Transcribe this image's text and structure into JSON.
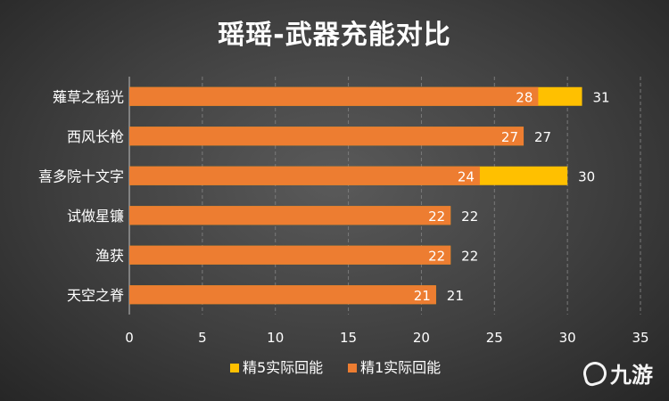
{
  "chart_data": {
    "type": "bar",
    "orientation": "horizontal",
    "title": "瑶瑶-武器充能对比",
    "categories": [
      "薙草之稻光",
      "西风长枪",
      "喜多院十文字",
      "试做星镰",
      "渔获",
      "天空之脊"
    ],
    "series": [
      {
        "name": "精1实际回能",
        "color": "#ed7d31",
        "values": [
          28,
          27,
          24,
          22,
          22,
          21
        ]
      },
      {
        "name": "精5实际回能",
        "color": "#ffc000",
        "values": [
          31,
          27,
          30,
          22,
          22,
          21
        ]
      }
    ],
    "xlim": [
      0,
      35
    ],
    "xticks": [
      "0",
      "5",
      "10",
      "15",
      "20",
      "25",
      "30",
      "35"
    ],
    "grid": true,
    "legend_placement": "bottom",
    "legend": [
      "精5实际回能",
      "精1实际回能"
    ]
  },
  "watermark": {
    "text": "九游"
  }
}
